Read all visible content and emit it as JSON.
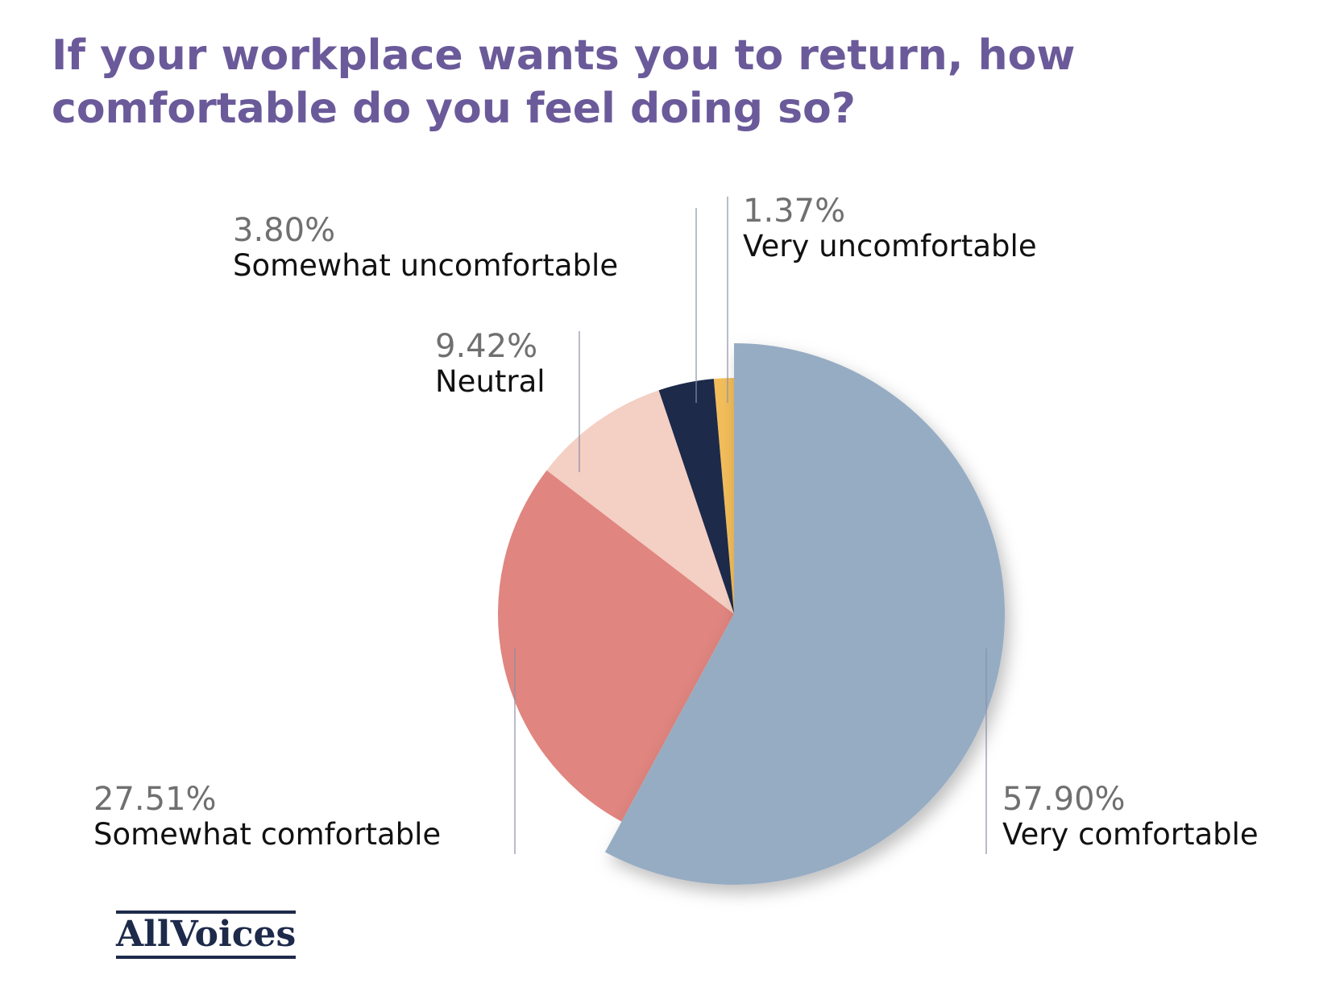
{
  "chart_data": {
    "type": "pie",
    "title": "If your workplace wants you to return, how comfortable do you feel doing so?",
    "categories": [
      "Very comfortable",
      "Somewhat comfortable",
      "Neutral",
      "Somewhat uncomfortable",
      "Very uncomfortable"
    ],
    "values": [
      57.9,
      27.51,
      9.42,
      3.8,
      1.37
    ],
    "value_labels": [
      "57.90%",
      "27.51%",
      "9.42%",
      "3.80%",
      "1.37%"
    ],
    "colors": [
      "#96acc3",
      "#e0857f",
      "#f4cfc3",
      "#1d2a4a",
      "#f2bd5a"
    ],
    "logo": "AllVoices"
  }
}
